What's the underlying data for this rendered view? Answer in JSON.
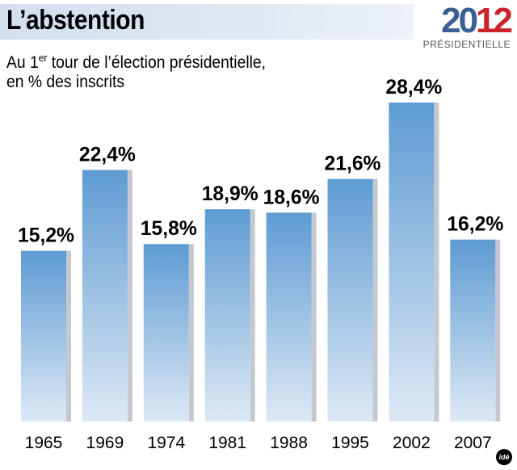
{
  "header": {
    "title": "L’abstention",
    "subtitle_pre": "Au 1",
    "subtitle_sup": "er",
    "subtitle_post": " tour de l’élection présidentielle,",
    "subtitle_line2": "en % des inscrits"
  },
  "badge": {
    "year_a": "20",
    "year_b": "12",
    "label": "PRÉSIDENTIELLE"
  },
  "logo": {
    "text": "idé"
  },
  "colors": {
    "bar_top": "#5e9bd2",
    "bar_bottom": "#dde9f5",
    "bar_shadow": "#c4c9cf"
  },
  "chart_data": {
    "type": "bar",
    "categories": [
      "1965",
      "1969",
      "1974",
      "1981",
      "1988",
      "1995",
      "2002",
      "2007"
    ],
    "values": [
      15.2,
      22.4,
      15.8,
      18.9,
      18.6,
      21.6,
      28.4,
      16.2
    ],
    "value_labels": [
      "15,2%",
      "22,4%",
      "15,8%",
      "18,9%",
      "18,6%",
      "21,6%",
      "28,4%",
      "16,2%"
    ],
    "title": "L’abstention",
    "ylabel": "en % des inscrits",
    "ylim": [
      0,
      28.4
    ],
    "grid": false
  }
}
